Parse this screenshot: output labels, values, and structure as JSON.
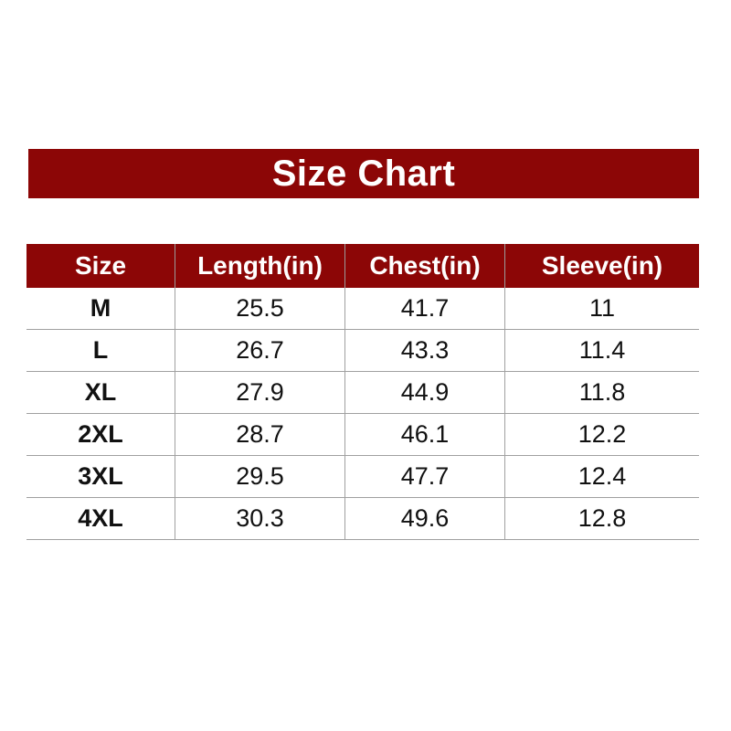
{
  "banner": {
    "title": "Size Chart",
    "bg_color": "#8c0606",
    "text_color": "#ffffff"
  },
  "table": {
    "header_bg": "#8c0606",
    "header_text_color": "#ffffff",
    "border_color": "#a0a0a0",
    "headers": [
      "Size",
      "Length(in)",
      "Chest(in)",
      "Sleeve(in)"
    ],
    "rows": [
      [
        "M",
        "25.5",
        "41.7",
        "11"
      ],
      [
        "L",
        "26.7",
        "43.3",
        "11.4"
      ],
      [
        "XL",
        "27.9",
        "44.9",
        "11.8"
      ],
      [
        "2XL",
        "28.7",
        "46.1",
        "12.2"
      ],
      [
        "3XL",
        "29.5",
        "47.7",
        "12.4"
      ],
      [
        "4XL",
        "30.3",
        "49.6",
        "12.8"
      ]
    ]
  },
  "chart_data": {
    "type": "table",
    "title": "Size Chart",
    "columns": [
      "Size",
      "Length(in)",
      "Chest(in)",
      "Sleeve(in)"
    ],
    "rows": [
      {
        "size": "M",
        "length_in": 25.5,
        "chest_in": 41.7,
        "sleeve_in": 11
      },
      {
        "size": "L",
        "length_in": 26.7,
        "chest_in": 43.3,
        "sleeve_in": 11.4
      },
      {
        "size": "XL",
        "length_in": 27.9,
        "chest_in": 44.9,
        "sleeve_in": 11.8
      },
      {
        "size": "2XL",
        "length_in": 28.7,
        "chest_in": 46.1,
        "sleeve_in": 12.2
      },
      {
        "size": "3XL",
        "length_in": 29.5,
        "chest_in": 47.7,
        "sleeve_in": 12.4
      },
      {
        "size": "4XL",
        "length_in": 30.3,
        "chest_in": 49.6,
        "sleeve_in": 12.8
      }
    ],
    "layout": {
      "header_style": "dark-red background, white bold text",
      "grid": "thin gray horizontal and vertical rules, no outer side borders"
    }
  }
}
